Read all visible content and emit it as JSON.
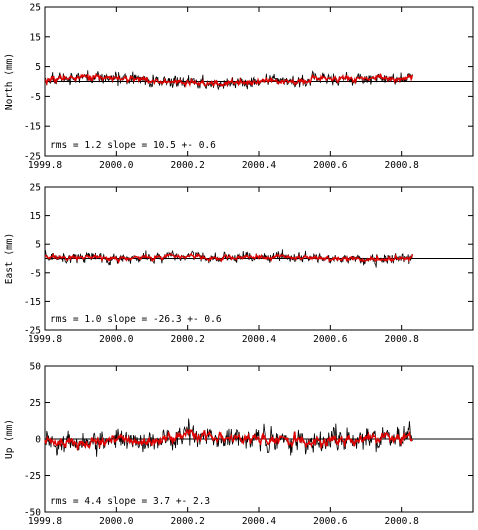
{
  "chart_data": [
    {
      "type": "line",
      "ylabel": "North (mm)",
      "xlim": [
        1999.8,
        2001.0
      ],
      "ylim": [
        -25,
        25
      ],
      "yticks": [
        25,
        15,
        5,
        -5,
        -15,
        -25
      ],
      "xticks": [
        1999.8,
        2000.0,
        2000.2,
        2000.4,
        2000.6,
        2000.8
      ],
      "annotation": "rms = 1.2 slope = 10.5 +- 0.6",
      "time_range": [
        1999.8,
        2000.83
      ],
      "noise_amplitude_mm": 1.2,
      "series": [
        {
          "name": "",
          "color": "#000000",
          "x": [
            1999.8,
            1999.9,
            2000.0,
            2000.1,
            2000.2,
            2000.3,
            2000.4,
            2000.5,
            2000.6,
            2000.7,
            2000.8,
            2000.83
          ],
          "y": [
            0.5,
            1.5,
            1.0,
            0.5,
            -0.5,
            -0.5,
            0.0,
            0.0,
            1.0,
            1.0,
            1.0,
            1.0
          ]
        },
        {
          "name": "",
          "color": "#e00000",
          "x": [
            1999.8,
            1999.9,
            2000.0,
            2000.1,
            2000.2,
            2000.3,
            2000.4,
            2000.5,
            2000.6,
            2000.7,
            2000.8,
            2000.83
          ],
          "y": [
            0.5,
            1.5,
            1.0,
            0.5,
            -0.5,
            -0.5,
            0.0,
            0.0,
            1.0,
            1.0,
            1.0,
            1.0
          ]
        }
      ]
    },
    {
      "type": "line",
      "ylabel": "East (mm)",
      "xlim": [
        1999.8,
        2001.0
      ],
      "ylim": [
        -25,
        25
      ],
      "yticks": [
        25,
        15,
        5,
        -5,
        -15,
        -25
      ],
      "xticks": [
        1999.8,
        2000.0,
        2000.2,
        2000.4,
        2000.6,
        2000.8
      ],
      "annotation": "rms = 1.0 slope = -26.3 +- 0.6",
      "time_range": [
        1999.8,
        2000.83
      ],
      "noise_amplitude_mm": 1.0,
      "series": [
        {
          "name": "",
          "color": "#000000",
          "x": [
            1999.8,
            1999.9,
            2000.0,
            2000.1,
            2000.2,
            2000.3,
            2000.4,
            2000.5,
            2000.6,
            2000.7,
            2000.8,
            2000.83
          ],
          "y": [
            0.5,
            0.5,
            0.0,
            0.5,
            0.5,
            0.0,
            0.5,
            0.5,
            0.0,
            -0.5,
            0.0,
            0.0
          ]
        },
        {
          "name": "",
          "color": "#e00000",
          "x": [
            1999.8,
            1999.9,
            2000.0,
            2000.1,
            2000.2,
            2000.3,
            2000.4,
            2000.5,
            2000.6,
            2000.7,
            2000.8,
            2000.83
          ],
          "y": [
            0.5,
            0.5,
            0.0,
            0.5,
            0.5,
            0.0,
            0.5,
            0.5,
            0.0,
            -0.5,
            0.0,
            0.0
          ]
        }
      ]
    },
    {
      "type": "line",
      "ylabel": "Up (mm)",
      "xlim": [
        1999.8,
        2001.0
      ],
      "ylim": [
        -50,
        50
      ],
      "yticks": [
        50,
        25,
        0,
        -25,
        -50
      ],
      "xticks": [
        1999.8,
        2000.0,
        2000.2,
        2000.4,
        2000.6,
        2000.8
      ],
      "annotation": "rms = 4.4 slope = 3.7 +- 2.3",
      "time_range": [
        1999.8,
        2000.83
      ],
      "noise_amplitude_mm": 4.4,
      "series": [
        {
          "name": "",
          "color": "#000000",
          "x": [
            1999.8,
            1999.9,
            2000.0,
            2000.1,
            2000.2,
            2000.3,
            2000.4,
            2000.5,
            2000.6,
            2000.7,
            2000.8,
            2000.83
          ],
          "y": [
            -1.0,
            -3.0,
            0.0,
            -2.0,
            4.0,
            1.0,
            0.0,
            -1.0,
            -2.0,
            0.0,
            1.0,
            0.0
          ]
        },
        {
          "name": "",
          "color": "#e00000",
          "x": [
            1999.8,
            1999.9,
            2000.0,
            2000.1,
            2000.2,
            2000.3,
            2000.4,
            2000.5,
            2000.6,
            2000.7,
            2000.8,
            2000.83
          ],
          "y": [
            -1.0,
            -3.0,
            0.0,
            -2.0,
            4.0,
            1.0,
            0.0,
            -1.0,
            -2.0,
            0.0,
            1.0,
            0.0
          ]
        }
      ]
    }
  ]
}
